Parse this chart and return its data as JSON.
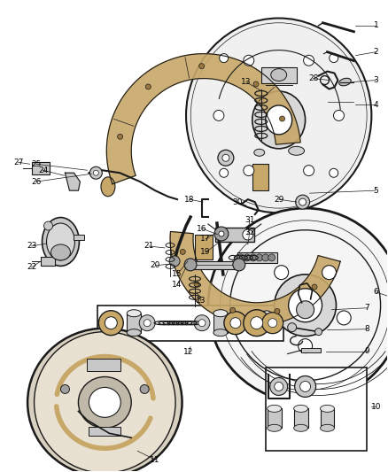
{
  "bg_color": "#ffffff",
  "lc": "#1a1a1a",
  "fig_width": 4.38,
  "fig_height": 5.33,
  "dpi": 100,
  "shoe_color": "#c8a868",
  "gray_light": "#e8e8e8",
  "gray_mid": "#c8c8c8",
  "gray_dark": "#a0a0a0",
  "tan": "#c8a868",
  "label_fs": 6.5
}
